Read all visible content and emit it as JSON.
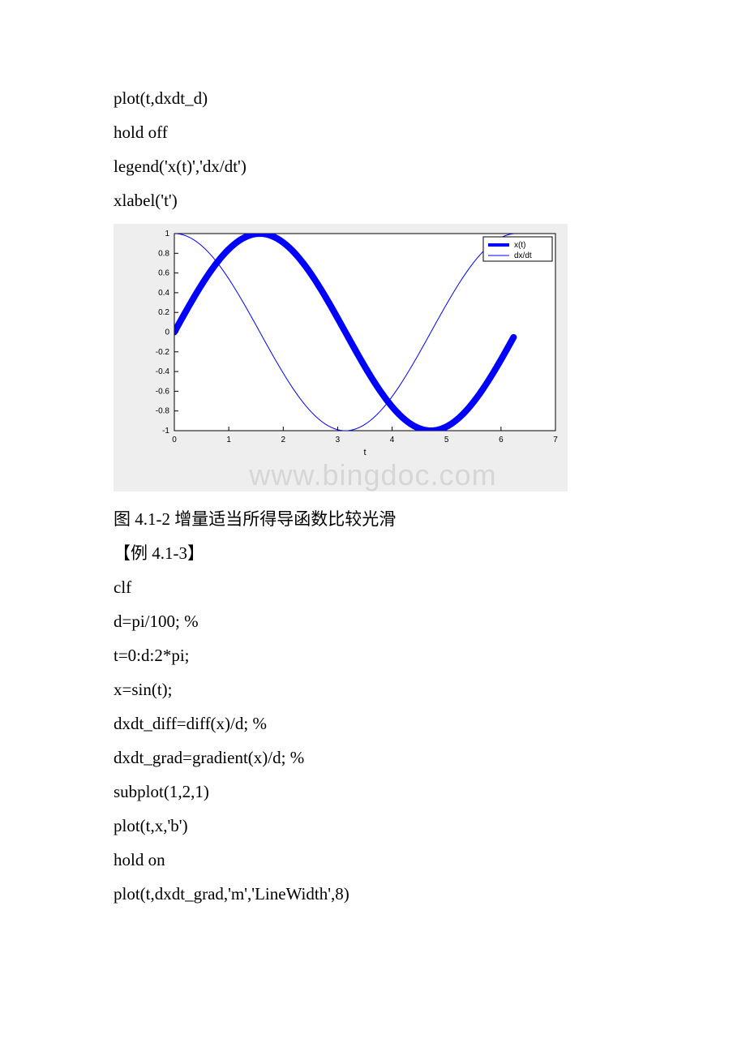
{
  "code_block_top": {
    "l1": "plot(t,dxdt_d)",
    "l2": "hold off",
    "l3": "legend('x(t)','dx/dt')",
    "l4": "xlabel('t')"
  },
  "chart": {
    "type": "line",
    "background_color": "#eeeeee",
    "plot_area_color": "#ffffff",
    "axis_color": "#000000",
    "xlim": [
      0,
      7
    ],
    "ylim": [
      -1,
      1
    ],
    "xticks": [
      0,
      1,
      2,
      3,
      4,
      5,
      6,
      7
    ],
    "yticks": [
      -1,
      -0.8,
      -0.6,
      -0.4,
      -0.2,
      0,
      0.2,
      0.4,
      0.6,
      0.8,
      1
    ],
    "xlabel": "t",
    "tick_fontsize": 10,
    "label_fontsize": 11,
    "tick_color": "#000000",
    "legend": {
      "items": [
        "x(t)",
        "dx/dt"
      ],
      "line_colors": [
        "#0000ff",
        "#0000ff"
      ],
      "line_widths": [
        4,
        1
      ],
      "position": "top-right",
      "border_color": "#000000",
      "bg_color": "#ffffff",
      "fontsize": 10
    },
    "series": [
      {
        "name": "x(t)",
        "color": "#0000ff",
        "line_width": 8,
        "t_step": 0.05236,
        "fn_desc": "sin(t) on [0, 2π]"
      },
      {
        "name": "dx/dt",
        "color": "#0000ff",
        "line_width": 1,
        "t_step": 0.05236,
        "fn_desc": "cos(t) on [0, 2π]"
      }
    ]
  },
  "caption": "图 4.1-2 增量适当所得导函数比较光滑",
  "example_title": "【例 4.1-3】",
  "code_block_bottom": {
    "l1": "clf",
    "l2": "d=pi/100;      %",
    "l3": "t=0:d:2*pi;",
    "l4": "x=sin(t);",
    "l5": "dxdt_diff=diff(x)/d;  %",
    "l6": "dxdt_grad=gradient(x)/d; %",
    "l7": "subplot(1,2,1)",
    "l8": "plot(t,x,'b')",
    "l9": "hold on",
    "l10": "plot(t,dxdt_grad,'m','LineWidth',8)"
  },
  "watermark": "www.bingdoc.com"
}
